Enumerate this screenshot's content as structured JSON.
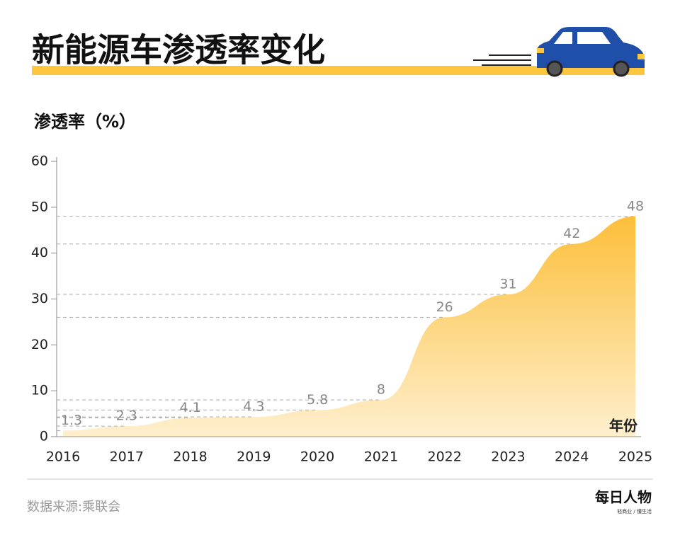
{
  "chart_data": {
    "type": "area",
    "title": "新能源车渗透率变化",
    "y_label": "渗透率（%）",
    "x_label": "年份",
    "categories": [
      "2016",
      "2017",
      "2018",
      "2019",
      "2020",
      "2021",
      "2022",
      "2023",
      "2024",
      "2025"
    ],
    "values": [
      1.3,
      2.3,
      4.1,
      4.3,
      5.8,
      8,
      26,
      31,
      42,
      48
    ],
    "color": "#fcbf3a",
    "ylim": [
      0,
      60
    ],
    "yticks": [
      0,
      10,
      20,
      30,
      40,
      50,
      60
    ],
    "value_guides": true,
    "source": "数据来源:乘联会",
    "logo": "每日人物",
    "logo_sub": "轻商业 / 懂生活"
  }
}
